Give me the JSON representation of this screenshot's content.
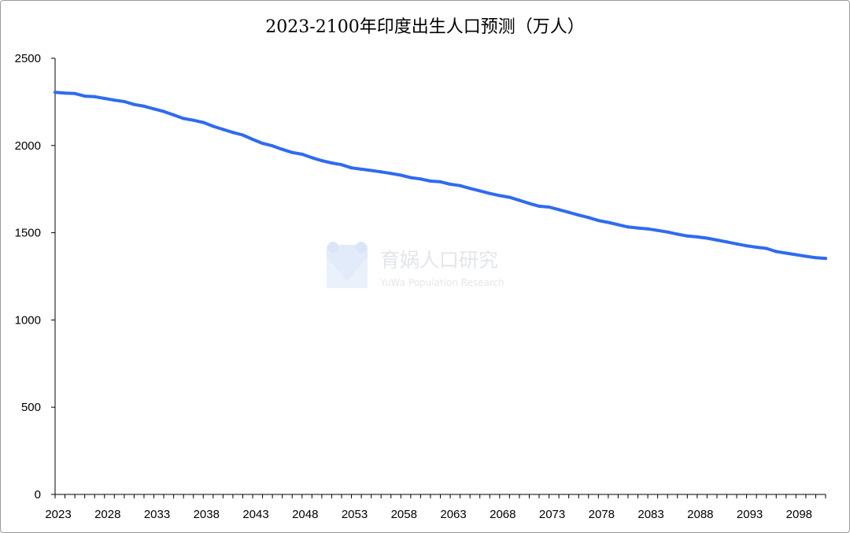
{
  "chart_data": {
    "type": "line",
    "title": "2023-2100年印度出生人口预测（万人）",
    "xlabel": "",
    "ylabel": "",
    "ylim": [
      0,
      2500
    ],
    "xlim": [
      2023,
      2101
    ],
    "yticks": [
      0,
      500,
      1000,
      1500,
      2000,
      2500
    ],
    "xticks": [
      2023,
      2028,
      2033,
      2038,
      2043,
      2048,
      2053,
      2058,
      2063,
      2068,
      2073,
      2078,
      2083,
      2088,
      2093,
      2098
    ],
    "grid": false,
    "legend": "none",
    "series_color": "#2F6BF0",
    "series": [
      {
        "x": [
          2023,
          2024,
          2025,
          2026,
          2027,
          2028,
          2029,
          2030,
          2031,
          2032,
          2033,
          2034,
          2035,
          2036,
          2037,
          2038,
          2039,
          2040,
          2041,
          2042,
          2043,
          2044,
          2045,
          2046,
          2047,
          2048,
          2049,
          2050,
          2051,
          2052,
          2053,
          2054,
          2055,
          2056,
          2057,
          2058,
          2059,
          2060,
          2061,
          2062,
          2063,
          2064,
          2065,
          2066,
          2067,
          2068,
          2069,
          2070,
          2071,
          2072,
          2073,
          2074,
          2075,
          2076,
          2077,
          2078,
          2079,
          2080,
          2081,
          2082,
          2083,
          2084,
          2085,
          2086,
          2087,
          2088,
          2089,
          2090,
          2091,
          2092,
          2093,
          2094,
          2095,
          2096,
          2097,
          2098,
          2099,
          2100,
          2101
        ],
        "values": [
          2305,
          2300,
          2298,
          2283,
          2280,
          2270,
          2260,
          2252,
          2235,
          2225,
          2210,
          2195,
          2175,
          2155,
          2145,
          2132,
          2110,
          2092,
          2075,
          2060,
          2035,
          2012,
          1998,
          1978,
          1960,
          1950,
          1930,
          1913,
          1900,
          1890,
          1872,
          1864,
          1857,
          1849,
          1840,
          1830,
          1816,
          1808,
          1796,
          1792,
          1778,
          1770,
          1754,
          1740,
          1725,
          1713,
          1703,
          1686,
          1668,
          1652,
          1647,
          1632,
          1617,
          1601,
          1587,
          1570,
          1559,
          1546,
          1533,
          1527,
          1522,
          1513,
          1504,
          1492,
          1481,
          1476,
          1469,
          1458,
          1447,
          1436,
          1425,
          1417,
          1410,
          1392,
          1383,
          1374,
          1365,
          1357,
          1353
        ]
      }
    ]
  },
  "watermark": {
    "name": "育娲人口研究",
    "subtitle": "YuWa Population Research"
  }
}
